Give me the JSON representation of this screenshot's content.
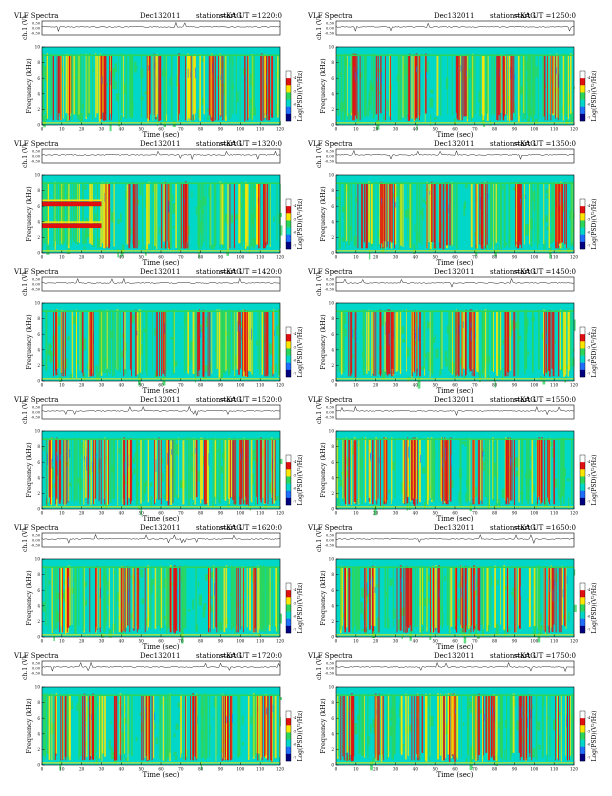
{
  "header": {
    "title": "VLF Spectra",
    "date": "Dec132011",
    "station": "station=KAG",
    "start_prefix": "start  UT  ="
  },
  "labels": {
    "ch1": "ch.1 (V)",
    "frequency": "Frequency  (kHz)",
    "time": "Time  (sec)",
    "colorbar": "Log(PSD)(V²/Hz)"
  },
  "colors": {
    "background": "#00d7c8",
    "mid": "#2bd65a",
    "high": "#ffe600",
    "peak": "#e01010",
    "low": "#1e6fff"
  },
  "chart_data": [
    {
      "type": "heatmap",
      "start_ut": "1220:0",
      "xlim": [
        0,
        120
      ],
      "ylim": [
        0,
        10
      ],
      "xticks": [
        0,
        10,
        20,
        30,
        40,
        50,
        60,
        70,
        80,
        90,
        100,
        110,
        120
      ],
      "yticks": [
        0,
        2,
        4,
        6,
        8,
        10
      ],
      "ch1_ticks": [
        "0.30",
        "0.00",
        "-0.30"
      ],
      "colorbar_ticks": [
        "-4",
        "-5",
        "-6",
        "-7"
      ],
      "bursts": [
        [
          5,
          14
        ],
        [
          28,
          35
        ],
        [
          50,
          60
        ],
        [
          68,
          78
        ],
        [
          84,
          92
        ],
        [
          100,
          104
        ],
        [
          110,
          116
        ]
      ]
    },
    {
      "type": "heatmap",
      "start_ut": "1250:0",
      "xlim": [
        0,
        120
      ],
      "ylim": [
        0,
        10
      ],
      "xticks": [
        0,
        10,
        20,
        30,
        40,
        50,
        60,
        70,
        80,
        90,
        100,
        110,
        120
      ],
      "yticks": [
        0,
        2,
        4,
        6,
        8,
        10
      ],
      "ch1_ticks": [
        "0.30",
        "0.00",
        "-0.30"
      ],
      "colorbar_ticks": [
        "-4",
        "-5",
        "-6",
        "-7"
      ],
      "bursts": [
        [
          8,
          12
        ],
        [
          20,
          28
        ],
        [
          36,
          48
        ],
        [
          60,
          66
        ],
        [
          80,
          90
        ],
        [
          104,
          112
        ]
      ]
    },
    {
      "type": "heatmap",
      "start_ut": "1320:0",
      "xlim": [
        0,
        120
      ],
      "ylim": [
        0,
        10
      ],
      "xticks": [
        0,
        10,
        20,
        30,
        40,
        50,
        60,
        70,
        80,
        90,
        100,
        110,
        120
      ],
      "yticks": [
        0,
        2,
        4,
        6,
        8,
        10
      ],
      "ch1_ticks": [
        "0.30",
        "0.00",
        "-0.30"
      ],
      "colorbar_ticks": [
        "-4",
        "-5",
        "-6",
        "-7"
      ],
      "bursts": [
        [
          30,
          34
        ],
        [
          42,
          50
        ],
        [
          60,
          64
        ],
        [
          70,
          76
        ],
        [
          94,
          100
        ],
        [
          108,
          114
        ]
      ],
      "bands": [
        {
          "x": [
            0,
            30
          ],
          "freq": [
            6.0,
            6.6
          ]
        },
        {
          "x": [
            0,
            30
          ],
          "freq": [
            3.2,
            3.8
          ]
        }
      ]
    },
    {
      "type": "heatmap",
      "start_ut": "1350:0",
      "xlim": [
        0,
        120
      ],
      "ylim": [
        0,
        10
      ],
      "xticks": [
        0,
        10,
        20,
        30,
        40,
        50,
        60,
        70,
        80,
        90,
        100,
        110,
        120
      ],
      "yticks": [
        0,
        2,
        4,
        6,
        8,
        10
      ],
      "ch1_ticks": [
        "0.30",
        "0.00",
        "-0.30"
      ],
      "colorbar_ticks": [
        "-4",
        "-5",
        "-6",
        "-7"
      ],
      "bursts": [
        [
          10,
          16
        ],
        [
          22,
          30
        ],
        [
          44,
          58
        ],
        [
          70,
          76
        ],
        [
          90,
          96
        ],
        [
          110,
          118
        ]
      ]
    },
    {
      "type": "heatmap",
      "start_ut": "1420:0",
      "xlim": [
        0,
        120
      ],
      "ylim": [
        0,
        10
      ],
      "xticks": [
        0,
        10,
        20,
        30,
        40,
        50,
        60,
        70,
        80,
        90,
        100,
        110,
        120
      ],
      "yticks": [
        0,
        2,
        4,
        6,
        8,
        10
      ],
      "ch1_ticks": [
        "0.30",
        "0.00",
        "-0.30"
      ],
      "colorbar_ticks": [
        "-4",
        "-5",
        "-6",
        "-7"
      ],
      "bursts": [
        [
          4,
          12
        ],
        [
          20,
          26
        ],
        [
          40,
          48
        ],
        [
          56,
          62
        ],
        [
          78,
          86
        ],
        [
          98,
          106
        ],
        [
          112,
          118
        ]
      ]
    },
    {
      "type": "heatmap",
      "start_ut": "1450:0",
      "xlim": [
        0,
        120
      ],
      "ylim": [
        0,
        10
      ],
      "xticks": [
        0,
        10,
        20,
        30,
        40,
        50,
        60,
        70,
        80,
        90,
        100,
        110,
        120
      ],
      "yticks": [
        0,
        2,
        4,
        6,
        8,
        10
      ],
      "ch1_ticks": [
        "0.30",
        "0.00",
        "-0.30"
      ],
      "colorbar_ticks": [
        "-4",
        "-5",
        "-6",
        "-7"
      ],
      "bursts": [
        [
          6,
          10
        ],
        [
          18,
          30
        ],
        [
          38,
          44
        ],
        [
          60,
          70
        ],
        [
          84,
          90
        ],
        [
          104,
          114
        ]
      ]
    },
    {
      "type": "heatmap",
      "start_ut": "1520:0",
      "xlim": [
        0,
        120
      ],
      "ylim": [
        0,
        10
      ],
      "xticks": [
        0,
        10,
        20,
        30,
        40,
        50,
        60,
        70,
        80,
        90,
        100,
        110,
        120
      ],
      "yticks": [
        0,
        2,
        4,
        6,
        8,
        10
      ],
      "ch1_ticks": [
        "0.30",
        "0.00",
        "-0.30"
      ],
      "colorbar_ticks": [
        "-4",
        "-5",
        "-6",
        "-7"
      ],
      "bursts": [
        [
          2,
          14
        ],
        [
          20,
          34
        ],
        [
          40,
          46
        ],
        [
          54,
          66
        ],
        [
          76,
          84
        ],
        [
          94,
          104
        ],
        [
          108,
          118
        ]
      ]
    },
    {
      "type": "heatmap",
      "start_ut": "1550:0",
      "xlim": [
        0,
        120
      ],
      "ylim": [
        0,
        10
      ],
      "xticks": [
        0,
        10,
        20,
        30,
        40,
        50,
        60,
        70,
        80,
        90,
        100,
        110,
        120
      ],
      "yticks": [
        0,
        2,
        4,
        6,
        8,
        10
      ],
      "ch1_ticks": [
        "0.30",
        "0.00",
        "-0.30"
      ],
      "colorbar_ticks": [
        "-4",
        "-5",
        "-6",
        "-7"
      ],
      "bursts": [
        [
          4,
          10
        ],
        [
          16,
          26
        ],
        [
          34,
          44
        ],
        [
          52,
          60
        ],
        [
          68,
          74
        ],
        [
          84,
          90
        ],
        [
          100,
          112
        ]
      ]
    },
    {
      "type": "heatmap",
      "start_ut": "1620:0",
      "xlim": [
        0,
        120
      ],
      "ylim": [
        0,
        10
      ],
      "xticks": [
        0,
        10,
        20,
        30,
        40,
        50,
        60,
        70,
        80,
        90,
        100,
        110,
        120
      ],
      "yticks": [
        0,
        2,
        4,
        6,
        8,
        10
      ],
      "ch1_ticks": [
        "0.30",
        "0.00",
        "-0.30"
      ],
      "colorbar_ticks": [
        "-4",
        "-5",
        "-6",
        "-7"
      ],
      "bursts": [
        [
          8,
          14
        ],
        [
          22,
          30
        ],
        [
          38,
          52
        ],
        [
          64,
          70
        ],
        [
          80,
          88
        ],
        [
          98,
          108
        ]
      ]
    },
    {
      "type": "heatmap",
      "start_ut": "1650:0",
      "xlim": [
        0,
        120
      ],
      "ylim": [
        0,
        10
      ],
      "xticks": [
        0,
        10,
        20,
        30,
        40,
        50,
        60,
        70,
        80,
        90,
        100,
        110,
        120
      ],
      "yticks": [
        0,
        2,
        4,
        6,
        8,
        10
      ],
      "ch1_ticks": [
        "0.30",
        "0.00",
        "-0.30"
      ],
      "colorbar_ticks": [
        "-4",
        "-5",
        "-6",
        "-7"
      ],
      "bursts": [
        [
          4,
          8
        ],
        [
          14,
          24
        ],
        [
          30,
          38
        ],
        [
          46,
          52
        ],
        [
          60,
          72
        ],
        [
          86,
          94
        ],
        [
          104,
          116
        ]
      ]
    },
    {
      "type": "heatmap",
      "start_ut": "1720:0",
      "xlim": [
        0,
        120
      ],
      "ylim": [
        0,
        10
      ],
      "xticks": [
        0,
        10,
        20,
        30,
        40,
        50,
        60,
        70,
        80,
        90,
        100,
        110,
        120
      ],
      "yticks": [
        0,
        2,
        4,
        6,
        8,
        10
      ],
      "ch1_ticks": [
        "0.30",
        "0.00",
        "-0.30"
      ],
      "colorbar_ticks": [
        "-4",
        "-5",
        "-6",
        "-7"
      ],
      "bursts": [
        [
          6,
          12
        ],
        [
          20,
          26
        ],
        [
          34,
          40
        ],
        [
          50,
          56
        ],
        [
          72,
          78
        ],
        [
          90,
          96
        ],
        [
          108,
          116
        ]
      ]
    },
    {
      "type": "heatmap",
      "start_ut": "1750:0",
      "xlim": [
        0,
        120
      ],
      "ylim": [
        0,
        10
      ],
      "xticks": [
        0,
        10,
        20,
        30,
        40,
        50,
        60,
        70,
        80,
        90,
        100,
        110,
        120
      ],
      "yticks": [
        0,
        2,
        4,
        6,
        8,
        10
      ],
      "ch1_ticks": [
        "0.30",
        "0.00",
        "-0.30"
      ],
      "colorbar_ticks": [
        "-4",
        "-5",
        "-6",
        "-7"
      ],
      "bursts": [
        [
          2,
          10
        ],
        [
          18,
          24
        ],
        [
          36,
          44
        ],
        [
          54,
          60
        ],
        [
          70,
          80
        ],
        [
          92,
          100
        ],
        [
          110,
          118
        ]
      ]
    }
  ]
}
